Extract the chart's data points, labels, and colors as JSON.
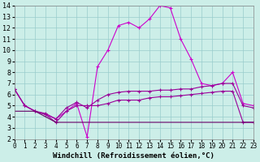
{
  "xlabel": "Windchill (Refroidissement éolien,°C)",
  "background_color": "#cceee8",
  "grid_color": "#99cccc",
  "line_color1": "#cc00cc",
  "line_color2": "#990099",
  "line_color3": "#660066",
  "hours": [
    0,
    1,
    2,
    3,
    4,
    5,
    6,
    7,
    8,
    9,
    10,
    11,
    12,
    13,
    14,
    15,
    16,
    17,
    18,
    19,
    20,
    21,
    22,
    23
  ],
  "windchill": [
    6.5,
    5.0,
    4.5,
    4.2,
    3.8,
    4.5,
    5.2,
    2.2,
    8.5,
    10.0,
    12.2,
    12.5,
    12.0,
    12.8,
    14.0,
    13.8,
    11.0,
    9.2,
    7.0,
    6.8,
    7.0,
    8.0,
    5.2,
    5.0
  ],
  "temp_feel": [
    6.5,
    5.0,
    4.5,
    4.3,
    3.8,
    4.8,
    5.3,
    4.8,
    5.5,
    6.0,
    6.2,
    6.3,
    6.3,
    6.3,
    6.4,
    6.4,
    6.5,
    6.5,
    6.7,
    6.8,
    7.0,
    7.0,
    5.0,
    4.8
  ],
  "temp_base": [
    6.5,
    5.0,
    4.5,
    4.2,
    3.5,
    4.5,
    5.0,
    5.0,
    5.0,
    5.2,
    5.5,
    5.5,
    5.5,
    5.7,
    5.8,
    5.8,
    5.9,
    6.0,
    6.1,
    6.2,
    6.3,
    6.3,
    3.5,
    3.5
  ],
  "temp_flat": [
    4.5,
    4.5,
    4.5,
    4.0,
    3.5,
    3.5,
    3.5,
    3.5,
    3.5,
    3.5,
    3.5,
    3.5,
    3.5,
    3.5,
    3.5,
    3.5,
    3.5,
    3.5,
    3.5,
    3.5,
    3.5,
    3.5,
    3.5,
    3.5
  ],
  "ylim": [
    2,
    14
  ],
  "xlim": [
    0,
    23
  ],
  "yticks": [
    2,
    3,
    4,
    5,
    6,
    7,
    8,
    9,
    10,
    11,
    12,
    13,
    14
  ],
  "xticks": [
    0,
    1,
    2,
    3,
    4,
    5,
    6,
    7,
    8,
    9,
    10,
    11,
    12,
    13,
    14,
    15,
    16,
    17,
    18,
    19,
    20,
    21,
    22,
    23
  ],
  "linewidth": 0.8,
  "xlabel_fontsize": 6.5,
  "tick_fontsize": 5.5
}
